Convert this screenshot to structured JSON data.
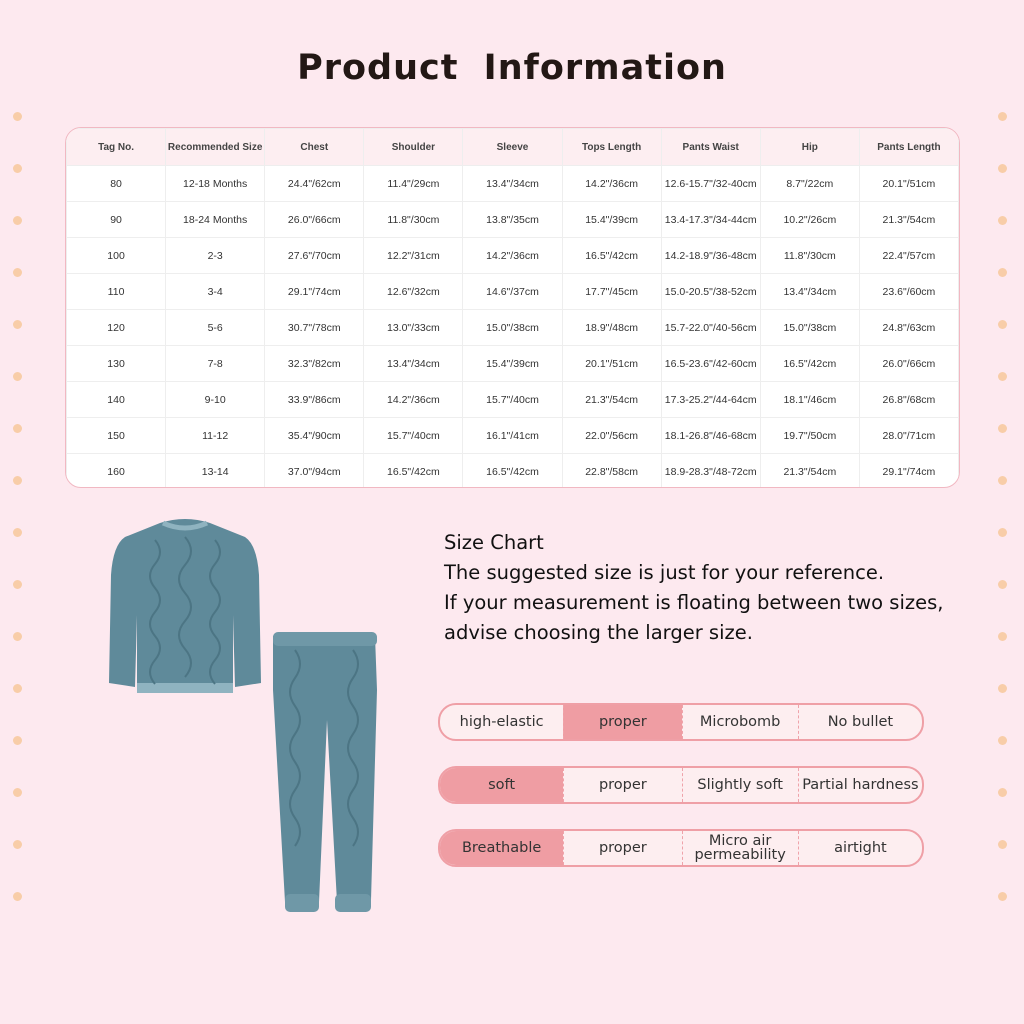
{
  "title": "Product  Information",
  "size_table": {
    "headers": [
      "Tag No.",
      "Recommended Size",
      "Chest",
      "Shoulder",
      "Sleeve",
      "Tops Length",
      "Pants Waist",
      "Hip",
      "Pants Length"
    ],
    "rows": [
      [
        "80",
        "12-18 Months",
        "24.4\"/62cm",
        "11.4\"/29cm",
        "13.4\"/34cm",
        "14.2\"/36cm",
        "12.6-15.7\"/32-40cm",
        "8.7\"/22cm",
        "20.1\"/51cm"
      ],
      [
        "90",
        "18-24 Months",
        "26.0\"/66cm",
        "11.8\"/30cm",
        "13.8\"/35cm",
        "15.4\"/39cm",
        "13.4-17.3\"/34-44cm",
        "10.2\"/26cm",
        "21.3\"/54cm"
      ],
      [
        "100",
        "2-3",
        "27.6\"/70cm",
        "12.2\"/31cm",
        "14.2\"/36cm",
        "16.5\"/42cm",
        "14.2-18.9\"/36-48cm",
        "11.8\"/30cm",
        "22.4\"/57cm"
      ],
      [
        "110",
        "3-4",
        "29.1\"/74cm",
        "12.6\"/32cm",
        "14.6\"/37cm",
        "17.7\"/45cm",
        "15.0-20.5\"/38-52cm",
        "13.4\"/34cm",
        "23.6\"/60cm"
      ],
      [
        "120",
        "5-6",
        "30.7\"/78cm",
        "13.0\"/33cm",
        "15.0\"/38cm",
        "18.9\"/48cm",
        "15.7-22.0\"/40-56cm",
        "15.0\"/38cm",
        "24.8\"/63cm"
      ],
      [
        "130",
        "7-8",
        "32.3\"/82cm",
        "13.4\"/34cm",
        "15.4\"/39cm",
        "20.1\"/51cm",
        "16.5-23.6\"/42-60cm",
        "16.5\"/42cm",
        "26.0\"/66cm"
      ],
      [
        "140",
        "9-10",
        "33.9\"/86cm",
        "14.2\"/36cm",
        "15.7\"/40cm",
        "21.3\"/54cm",
        "17.3-25.2\"/44-64cm",
        "18.1\"/46cm",
        "26.8\"/68cm"
      ],
      [
        "150",
        "11-12",
        "35.4\"/90cm",
        "15.7\"/40cm",
        "16.1\"/41cm",
        "22.0\"/56cm",
        "18.1-26.8\"/46-68cm",
        "19.7\"/50cm",
        "28.0\"/71cm"
      ],
      [
        "160",
        "13-14",
        "37.0\"/94cm",
        "16.5\"/42cm",
        "16.5\"/42cm",
        "22.8\"/58cm",
        "18.9-28.3\"/48-72cm",
        "21.3\"/54cm",
        "29.1\"/74cm"
      ]
    ]
  },
  "info": {
    "lines": [
      "Size Chart",
      "The suggested size is just for your reference.",
      "If your measurement is floating between two sizes,",
      "advise choosing the larger size."
    ]
  },
  "features": [
    {
      "cells": [
        "high-elastic",
        "proper",
        "Microbomb",
        "No bullet"
      ],
      "selected": 1
    },
    {
      "cells": [
        "soft",
        "proper",
        "Slightly soft",
        "Partial hardness"
      ],
      "selected": 0
    },
    {
      "cells": [
        "Breathable",
        "proper",
        "Micro air permeability",
        "airtight"
      ],
      "selected": 0
    }
  ],
  "colors": {
    "background": "#fde9ef",
    "accent": "#ef9da3",
    "garment": "#5f8a9a",
    "dots": "#f8cda8"
  }
}
